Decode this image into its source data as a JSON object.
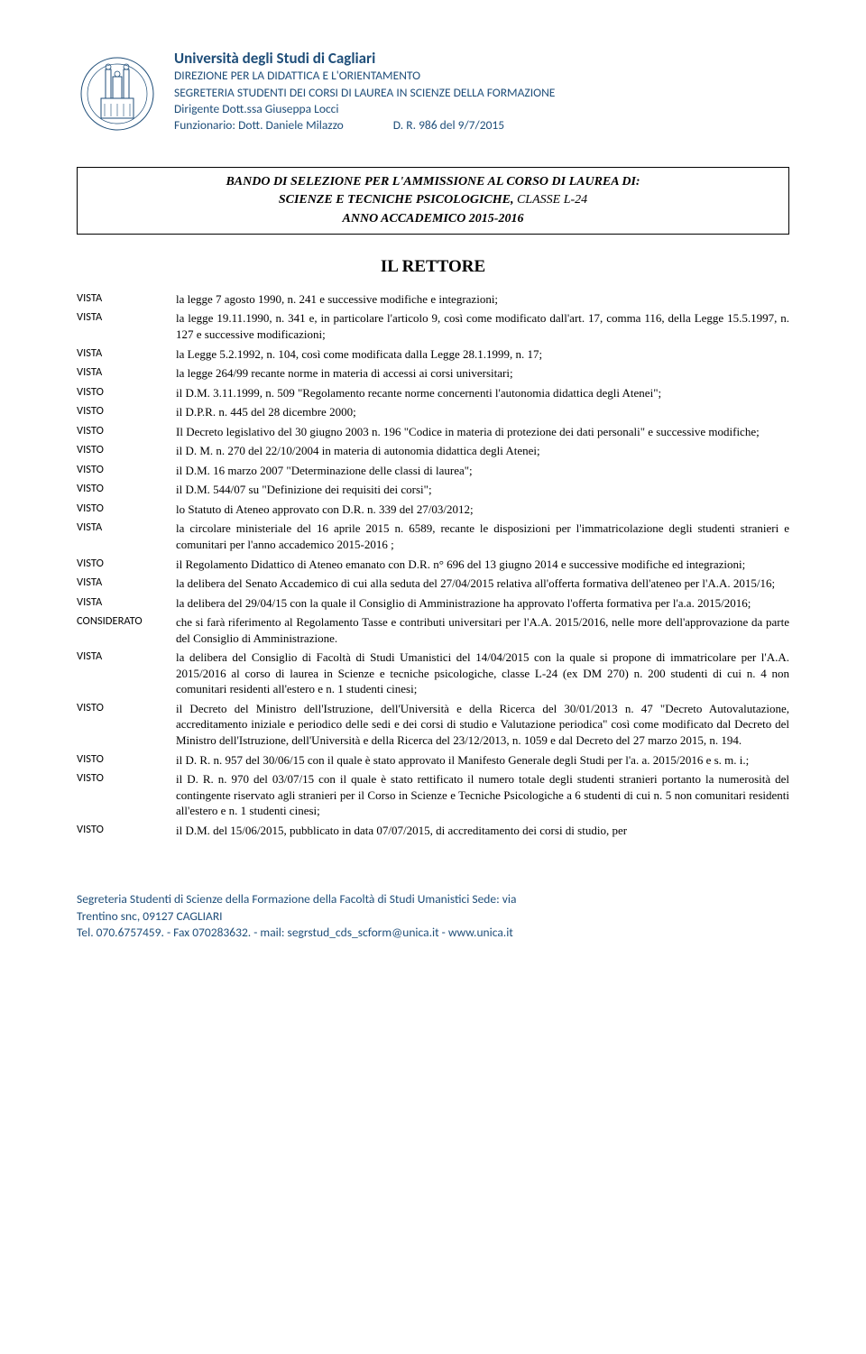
{
  "colors": {
    "header_text": "#1f4e79",
    "body_text": "#000000",
    "border": "#000000",
    "background": "#ffffff"
  },
  "header": {
    "university": "Università degli Studi di Cagliari",
    "line1": "DIREZIONE PER LA DIDATTICA E L'ORIENTAMENTO",
    "line2": "SEGRETERIA STUDENTI DEI CORSI DI LAUREA IN SCIENZE DELLA FORMAZIONE",
    "line3": "Dirigente Dott.ssa Giuseppa Locci",
    "line4a": "Funzionario: Dott. Daniele Milazzo",
    "line4b": "D. R. 986 del 9/7/2015"
  },
  "title_box": {
    "l1": "BANDO DI SELEZIONE PER L'AMMISSIONE AL CORSO DI LAUREA DI:",
    "l2a": "SCIENZE E TECNICHE PSICOLOGICHE, ",
    "l2b": "CLASSE L-24",
    "l3": "ANNO ACCADEMICO 2015-2016"
  },
  "rettore": "IL RETTORE",
  "clauses": [
    {
      "k": "VISTA",
      "v": "la legge 7 agosto 1990, n. 241 e successive modifiche e integrazioni;"
    },
    {
      "k": "VISTA",
      "v": "la legge 19.11.1990, n. 341 e, in particolare l'articolo 9, così come modificato dall'art. 17, comma 116, della Legge 15.5.1997, n. 127 e successive modificazioni;"
    },
    {
      "k": "VISTA",
      "v": "la Legge 5.2.1992, n. 104, così come modificata dalla Legge 28.1.1999, n. 17;"
    },
    {
      "k": "VISTA",
      "v": "la legge 264/99 recante norme in materia di accessi ai corsi universitari;"
    },
    {
      "k": "VISTO",
      "v": "il D.M. 3.11.1999, n. 509 \"Regolamento recante norme concernenti l'autonomia didattica degli Atenei\";"
    },
    {
      "k": "VISTO",
      "v": "il D.P.R. n. 445 del 28 dicembre 2000;"
    },
    {
      "k": "VISTO",
      "v": "Il Decreto legislativo del 30 giugno 2003 n. 196 \"Codice in materia di protezione dei dati personali\" e successive modifiche;"
    },
    {
      "k": "VISTO",
      "v": "il D. M. n. 270 del 22/10/2004 in materia di autonomia didattica degli Atenei;"
    },
    {
      "k": "VISTO",
      "v": "il D.M. 16 marzo 2007 \"Determinazione delle classi di laurea\";"
    },
    {
      "k": "VISTO",
      "v": "il D.M. 544/07 su \"Definizione dei requisiti dei corsi\";"
    },
    {
      "k": "VISTO",
      "v": "lo Statuto di Ateneo approvato con D.R. n. 339 del 27/03/2012;"
    },
    {
      "k": "VISTA",
      "v": "la circolare ministeriale del 16 aprile  2015 n. 6589, recante le disposizioni per l'immatricolazione degli studenti stranieri e comunitari per l'anno accademico 2015-2016 ;"
    },
    {
      "k": "VISTO",
      "v": "il Regolamento Didattico di Ateneo emanato con D.R. n° 696 del 13 giugno 2014 e successive modifiche ed integrazioni;"
    },
    {
      "k": "VISTA",
      "v": "la delibera del Senato Accademico di cui alla seduta del 27/04/2015 relativa all'offerta formativa dell'ateneo per l'A.A. 2015/16;"
    },
    {
      "k": "VISTA",
      "v": "la delibera del 29/04/15 con la quale il Consiglio di Amministrazione ha approvato l'offerta formativa per l'a.a. 2015/2016;"
    },
    {
      "k": "CONSIDERATO",
      "v": "che si farà riferimento al Regolamento Tasse e contributi universitari per l'A.A. 2015/2016, nelle more dell'approvazione da parte del Consiglio di Amministrazione."
    },
    {
      "k": "VISTA",
      "v": "la delibera del Consiglio di Facoltà di Studi Umanistici del 14/04/2015 con la quale si propone di immatricolare per l'A.A. 2015/2016 al corso di laurea in Scienze e tecniche psicologiche, classe L-24 (ex DM 270) n. 200 studenti di cui n. 4 non comunitari residenti all'estero e  n. 1 studenti cinesi;"
    },
    {
      "k": "VISTO",
      "v": "il Decreto del Ministro dell'Istruzione, dell'Università e della Ricerca del 30/01/2013 n. 47 \"Decreto Autovalutazione, accreditamento iniziale e periodico delle sedi e dei corsi di studio e Valutazione periodica\" così come modificato dal Decreto del Ministro dell'Istruzione, dell'Università e della Ricerca del 23/12/2013, n. 1059 e dal Decreto del 27 marzo 2015, n. 194."
    },
    {
      "k": "VISTO",
      "v": "il D. R. n. 957 del 30/06/15 con il quale è stato approvato il Manifesto Generale degli Studi per l'a. a. 2015/2016 e s. m. i.;"
    },
    {
      "k": "VISTO",
      "v": "il D. R. n. 970 del 03/07/15 con il quale è stato rettificato il numero totale degli studenti stranieri portanto la numerosità del contingente riservato agli stranieri per il Corso in Scienze e Tecniche Psicologiche a 6 studenti di cui n. 5 non comunitari residenti all'estero e  n. 1 studenti cinesi;"
    },
    {
      "k": "VISTO",
      "v": "il D.M. del 15/06/2015, pubblicato in data 07/07/2015, di accreditamento dei corsi di studio, per"
    }
  ],
  "footer": {
    "l1": "Segreteria Studenti di Scienze della Formazione  della Facoltà di Studi Umanistici Sede: via",
    "l2": "Trentino snc, 09127 CAGLIARI",
    "l3": "Tel. 070.6757459. - Fax 070283632. - mail: segrstud_cds_scform@unica.it - www.unica.it"
  }
}
